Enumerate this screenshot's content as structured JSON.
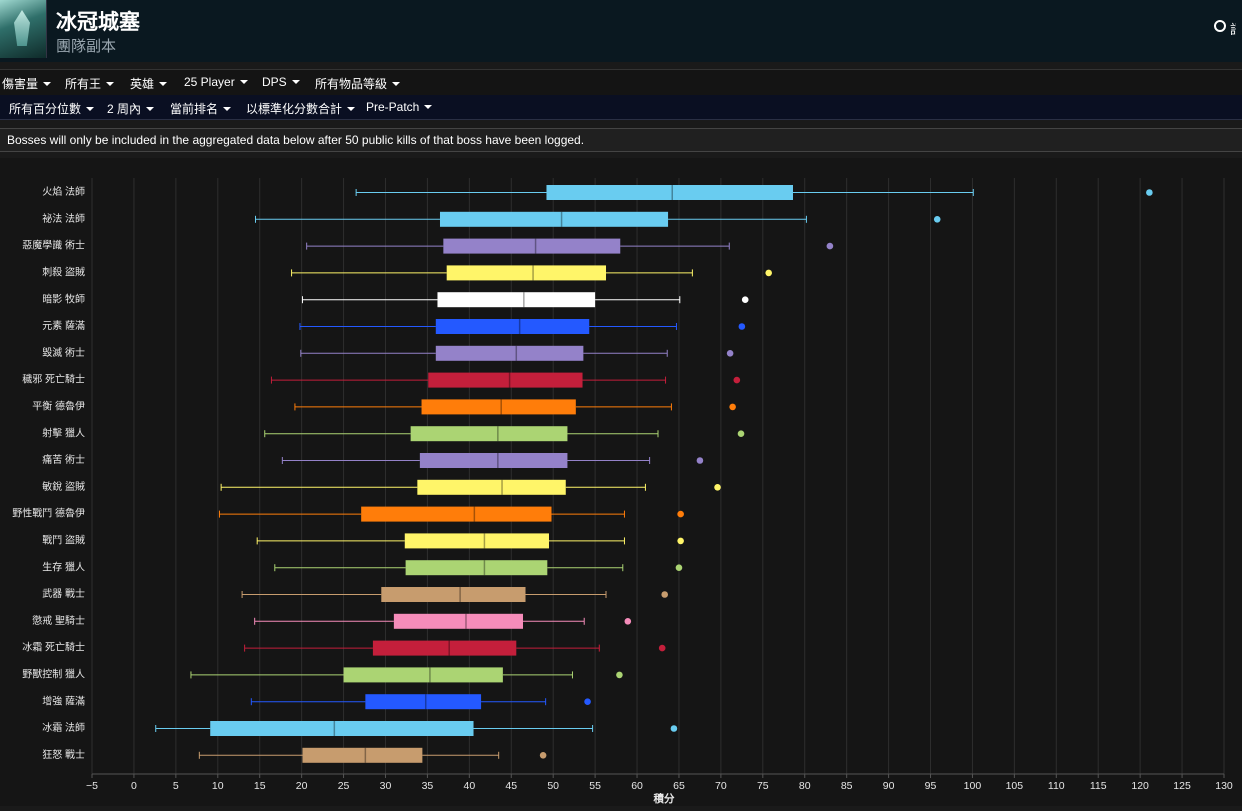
{
  "header": {
    "title": "冰冠城塞",
    "subtitle": "團隊副本",
    "language_label": "語言"
  },
  "filters_row1": [
    "傷害量",
    "所有王",
    "英雄",
    "25 Player",
    "DPS",
    "所有物品等級"
  ],
  "filters_row2": [
    "所有百分位數",
    "2 周內",
    "當前排名",
    "以標準化分數合計",
    "Pre-Patch"
  ],
  "notice": "Bosses will only be included in the aggregated data below after 50 public kills of that boss have been logged.",
  "chart_data": {
    "type": "boxplot",
    "orientation": "horizontal",
    "xlabel": "積分",
    "xlim": [
      -5,
      130
    ],
    "xticks": [
      -5,
      0,
      5,
      10,
      15,
      20,
      25,
      30,
      35,
      40,
      45,
      50,
      55,
      60,
      65,
      70,
      75,
      80,
      85,
      90,
      95,
      100,
      105,
      110,
      115,
      120,
      125,
      130
    ],
    "grid": true,
    "series": [
      {
        "name": "火焰 法師",
        "color": "#69CCF0",
        "min": 26.5,
        "q1": 49.2,
        "median": 64.2,
        "q3": 78.6,
        "max": 100.1,
        "outlier": 121.1
      },
      {
        "name": "祕法 法師",
        "color": "#69CCF0",
        "min": 14.5,
        "q1": 36.5,
        "median": 51.0,
        "q3": 63.7,
        "max": 80.2,
        "outlier": 95.8
      },
      {
        "name": "惡魔學識 術士",
        "color": "#9482C9",
        "min": 20.6,
        "q1": 36.9,
        "median": 47.9,
        "q3": 58.0,
        "max": 71.0,
        "outlier": 83.0
      },
      {
        "name": "刺殺 盜賊",
        "color": "#FFF569",
        "min": 18.8,
        "q1": 37.3,
        "median": 47.6,
        "q3": 56.3,
        "max": 66.6,
        "outlier": 75.7
      },
      {
        "name": "暗影 牧師",
        "color": "#FFFFFF",
        "min": 20.1,
        "q1": 36.2,
        "median": 46.5,
        "q3": 55.0,
        "max": 65.1,
        "outlier": 72.9
      },
      {
        "name": "元素 薩滿",
        "color": "#2459FF",
        "min": 19.8,
        "q1": 36.0,
        "median": 46.0,
        "q3": 54.3,
        "max": 64.7,
        "outlier": 72.5
      },
      {
        "name": "毀滅 術士",
        "color": "#9482C9",
        "min": 19.9,
        "q1": 36.0,
        "median": 45.6,
        "q3": 53.6,
        "max": 63.6,
        "outlier": 71.1
      },
      {
        "name": "穢邪 死亡騎士",
        "color": "#C41F3B",
        "min": 16.4,
        "q1": 35.1,
        "median": 44.8,
        "q3": 53.5,
        "max": 63.4,
        "outlier": 71.9
      },
      {
        "name": "平衡 德魯伊",
        "color": "#FF7D0A",
        "min": 19.2,
        "q1": 34.3,
        "median": 43.8,
        "q3": 52.7,
        "max": 64.1,
        "outlier": 71.4
      },
      {
        "name": "射擊 獵人",
        "color": "#ABD473",
        "min": 15.6,
        "q1": 33.0,
        "median": 43.4,
        "q3": 51.7,
        "max": 62.5,
        "outlier": 72.4
      },
      {
        "name": "痛苦 術士",
        "color": "#9482C9",
        "min": 17.7,
        "q1": 34.1,
        "median": 43.4,
        "q3": 51.7,
        "max": 61.5,
        "outlier": 67.5
      },
      {
        "name": "敏銳 盜賊",
        "color": "#FFF569",
        "min": 10.4,
        "q1": 33.8,
        "median": 43.9,
        "q3": 51.5,
        "max": 61.0,
        "outlier": 69.6
      },
      {
        "name": "野性戰鬥 德魯伊",
        "color": "#FF7D0A",
        "min": 10.2,
        "q1": 27.1,
        "median": 40.6,
        "q3": 49.8,
        "max": 58.5,
        "outlier": 65.2
      },
      {
        "name": "戰鬥 盜賊",
        "color": "#FFF569",
        "min": 14.7,
        "q1": 32.3,
        "median": 41.8,
        "q3": 49.5,
        "max": 58.5,
        "outlier": 65.2
      },
      {
        "name": "生存 獵人",
        "color": "#ABD473",
        "min": 16.8,
        "q1": 32.4,
        "median": 41.8,
        "q3": 49.3,
        "max": 58.3,
        "outlier": 65.0
      },
      {
        "name": "武器 戰士",
        "color": "#C79C6E",
        "min": 12.9,
        "q1": 29.5,
        "median": 38.9,
        "q3": 46.7,
        "max": 56.3,
        "outlier": 63.3
      },
      {
        "name": "懲戒 聖騎士",
        "color": "#F58CBA",
        "min": 14.4,
        "q1": 31.0,
        "median": 39.6,
        "q3": 46.4,
        "max": 53.7,
        "outlier": 58.9
      },
      {
        "name": "冰霜 死亡騎士",
        "color": "#C41F3B",
        "min": 13.2,
        "q1": 28.5,
        "median": 37.6,
        "q3": 45.6,
        "max": 55.5,
        "outlier": 63.0
      },
      {
        "name": "野獸控制 獵人",
        "color": "#ABD473",
        "min": 6.8,
        "q1": 25.0,
        "median": 35.3,
        "q3": 44.0,
        "max": 52.3,
        "outlier": 57.9
      },
      {
        "name": "增強 薩滿",
        "color": "#2459FF",
        "min": 14.0,
        "q1": 27.6,
        "median": 34.8,
        "q3": 41.4,
        "max": 49.1,
        "outlier": 54.1
      },
      {
        "name": "冰霜 法師",
        "color": "#69CCF0",
        "min": 2.6,
        "q1": 9.1,
        "median": 23.9,
        "q3": 40.5,
        "max": 54.7,
        "outlier": 64.4
      },
      {
        "name": "狂怒 戰士",
        "color": "#C79C6E",
        "min": 7.8,
        "q1": 20.1,
        "median": 27.6,
        "q3": 34.4,
        "max": 43.5,
        "outlier": 48.8
      }
    ]
  }
}
